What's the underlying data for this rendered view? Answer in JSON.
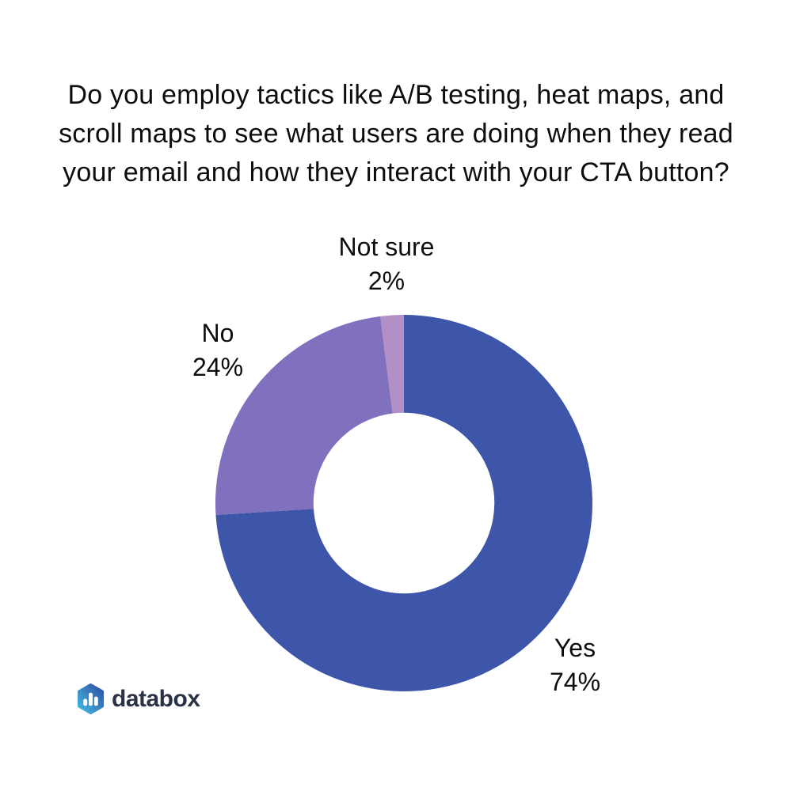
{
  "page": {
    "background": "#FFFFFF",
    "text_color": "#0D0D0D"
  },
  "chart_data": {
    "type": "pie",
    "subtype": "donut",
    "title": "Do you employ tactics like A/B testing, heat maps, and scroll maps to see what users are doing when they read your email and how they interact with your CTA button?",
    "title_lines": [
      "Do you employ tactics like A/B testing, heat maps, and",
      "scroll maps to see what users are doing when they read",
      "your email and how they interact with your CTA button?"
    ],
    "categories": [
      "Yes",
      "No",
      "Not sure"
    ],
    "values": [
      74,
      24,
      2
    ],
    "unit": "%",
    "value_labels": [
      "74%",
      "24%",
      "2%"
    ],
    "colors": [
      "#3E56A9",
      "#8070BE",
      "#B28FC6"
    ],
    "start_angle_deg": 0,
    "direction": "clockwise",
    "inner_radius_ratio": 0.48,
    "legend_position": "none",
    "label_style": "outside"
  },
  "brand": {
    "logo_text": "databox",
    "logo_text_color": "#2B3246",
    "logo_gradient_start": "#45BBE0",
    "logo_gradient_end": "#2E4EA4",
    "logo_bar_color": "#FFFFFF"
  }
}
